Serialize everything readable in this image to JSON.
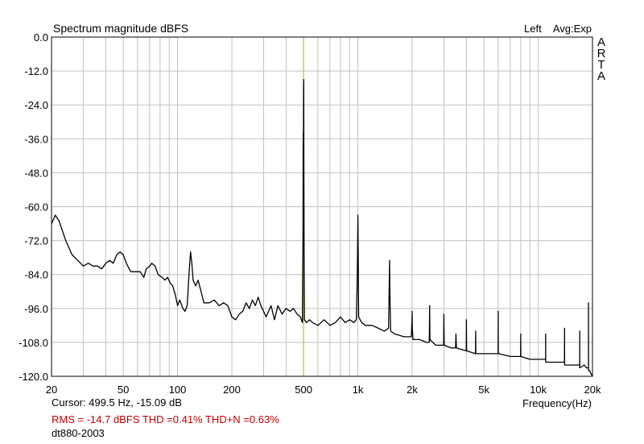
{
  "chart_data": {
    "type": "line",
    "title": "Spectrum magnitude dBFS",
    "channel_label": "Left",
    "averaging_label": "Avg:Exp",
    "watermark": [
      "A",
      "R",
      "T",
      "A"
    ],
    "xlabel": "Frequency(Hz)",
    "ylabel": "",
    "xscale": "log",
    "xlim": [
      20,
      20000
    ],
    "ylim": [
      -120,
      0
    ],
    "grid": true,
    "x_ticks": [
      {
        "value": 20,
        "label": "20"
      },
      {
        "value": 50,
        "label": "50"
      },
      {
        "value": 100,
        "label": "100"
      },
      {
        "value": 200,
        "label": "200"
      },
      {
        "value": 500,
        "label": "500"
      },
      {
        "value": 1000,
        "label": "1k"
      },
      {
        "value": 2000,
        "label": "2k"
      },
      {
        "value": 5000,
        "label": "5k"
      },
      {
        "value": 10000,
        "label": "10k"
      },
      {
        "value": 20000,
        "label": "20k"
      }
    ],
    "y_ticks": [
      {
        "value": 0,
        "label": "0.0"
      },
      {
        "value": -12,
        "label": "-12.0"
      },
      {
        "value": -24,
        "label": "-24.0"
      },
      {
        "value": -36,
        "label": "-36.0"
      },
      {
        "value": -48,
        "label": "-48.0"
      },
      {
        "value": -60,
        "label": "-60.0"
      },
      {
        "value": -72,
        "label": "-72.0"
      },
      {
        "value": -84,
        "label": "-84.0"
      },
      {
        "value": -96,
        "label": "-96.0"
      },
      {
        "value": -108,
        "label": "-108.0"
      },
      {
        "value": -120,
        "label": "-120.0"
      }
    ],
    "cursor_frequency_hz": 499.5,
    "series": [
      {
        "color": "#000000",
        "points": [
          [
            20,
            -66
          ],
          [
            21,
            -63
          ],
          [
            22,
            -65
          ],
          [
            24,
            -72
          ],
          [
            26,
            -77
          ],
          [
            28,
            -79
          ],
          [
            30,
            -81
          ],
          [
            32,
            -80
          ],
          [
            34,
            -81
          ],
          [
            36,
            -81
          ],
          [
            38,
            -82
          ],
          [
            40,
            -80
          ],
          [
            42,
            -79
          ],
          [
            44,
            -80
          ],
          [
            46,
            -77
          ],
          [
            48,
            -76
          ],
          [
            50,
            -77
          ],
          [
            52,
            -80
          ],
          [
            55,
            -83
          ],
          [
            58,
            -83
          ],
          [
            62,
            -83
          ],
          [
            65,
            -85
          ],
          [
            67,
            -82
          ],
          [
            70,
            -81
          ],
          [
            72,
            -80
          ],
          [
            75,
            -81
          ],
          [
            78,
            -84
          ],
          [
            82,
            -85
          ],
          [
            85,
            -86
          ],
          [
            88,
            -85
          ],
          [
            91,
            -87
          ],
          [
            94,
            -88
          ],
          [
            97,
            -91
          ],
          [
            100,
            -95
          ],
          [
            103,
            -93
          ],
          [
            107,
            -96
          ],
          [
            110,
            -97
          ],
          [
            113,
            -95
          ],
          [
            116,
            -83
          ],
          [
            118,
            -76
          ],
          [
            120,
            -80
          ],
          [
            122,
            -86
          ],
          [
            126,
            -88
          ],
          [
            130,
            -86
          ],
          [
            135,
            -90
          ],
          [
            140,
            -94
          ],
          [
            145,
            -94
          ],
          [
            150,
            -94
          ],
          [
            160,
            -93
          ],
          [
            170,
            -95
          ],
          [
            180,
            -94
          ],
          [
            190,
            -95
          ],
          [
            200,
            -99
          ],
          [
            210,
            -100
          ],
          [
            220,
            -98
          ],
          [
            230,
            -97
          ],
          [
            240,
            -94
          ],
          [
            250,
            -96
          ],
          [
            260,
            -93
          ],
          [
            270,
            -95
          ],
          [
            280,
            -92
          ],
          [
            290,
            -95
          ],
          [
            300,
            -97
          ],
          [
            310,
            -99
          ],
          [
            330,
            -95
          ],
          [
            345,
            -100
          ],
          [
            360,
            -95
          ],
          [
            380,
            -98
          ],
          [
            400,
            -96
          ],
          [
            420,
            -97
          ],
          [
            440,
            -96
          ],
          [
            460,
            -98
          ],
          [
            480,
            -99
          ],
          [
            492,
            -101
          ],
          [
            496,
            -70
          ],
          [
            497,
            -37
          ],
          [
            498,
            -34
          ],
          [
            499,
            -48
          ],
          [
            500,
            -18
          ],
          [
            501,
            -15
          ],
          [
            502,
            -46
          ],
          [
            503,
            -68
          ],
          [
            505,
            -100
          ],
          [
            520,
            -101
          ],
          [
            540,
            -100
          ],
          [
            560,
            -101
          ],
          [
            600,
            -102
          ],
          [
            650,
            -100
          ],
          [
            700,
            -102
          ],
          [
            750,
            -101
          ],
          [
            800,
            -99
          ],
          [
            850,
            -101
          ],
          [
            900,
            -100
          ],
          [
            950,
            -101
          ],
          [
            980,
            -100
          ],
          [
            990,
            -88
          ],
          [
            995,
            -77
          ],
          [
            1000,
            -63
          ],
          [
            1005,
            -80
          ],
          [
            1010,
            -99
          ],
          [
            1050,
            -101
          ],
          [
            1100,
            -102
          ],
          [
            1200,
            -102
          ],
          [
            1300,
            -103
          ],
          [
            1400,
            -104
          ],
          [
            1480,
            -103
          ],
          [
            1495,
            -84
          ],
          [
            1500,
            -79
          ],
          [
            1505,
            -90
          ],
          [
            1520,
            -104
          ],
          [
            1600,
            -105
          ],
          [
            1800,
            -106
          ],
          [
            1980,
            -106
          ],
          [
            1995,
            -100
          ],
          [
            2000,
            -97
          ],
          [
            2005,
            -103
          ],
          [
            2020,
            -107
          ],
          [
            2200,
            -107
          ],
          [
            2400,
            -108
          ],
          [
            2490,
            -108
          ],
          [
            2500,
            -95
          ],
          [
            2510,
            -107
          ],
          [
            2700,
            -109
          ],
          [
            2990,
            -109
          ],
          [
            3000,
            -98
          ],
          [
            3010,
            -109
          ],
          [
            3300,
            -110
          ],
          [
            3480,
            -110
          ],
          [
            3500,
            -105
          ],
          [
            3520,
            -110
          ],
          [
            3990,
            -111
          ],
          [
            4000,
            -100
          ],
          [
            4010,
            -111
          ],
          [
            4490,
            -112
          ],
          [
            4500,
            -104
          ],
          [
            4510,
            -112
          ],
          [
            5000,
            -112
          ],
          [
            5990,
            -112
          ],
          [
            6000,
            -97
          ],
          [
            6010,
            -112
          ],
          [
            7000,
            -113
          ],
          [
            7990,
            -113
          ],
          [
            8000,
            -105
          ],
          [
            8010,
            -113
          ],
          [
            9000,
            -114
          ],
          [
            10000,
            -114
          ],
          [
            10990,
            -114
          ],
          [
            11000,
            -105
          ],
          [
            11010,
            -115
          ],
          [
            12500,
            -115
          ],
          [
            13990,
            -115
          ],
          [
            14000,
            -103
          ],
          [
            14010,
            -116
          ],
          [
            15500,
            -116
          ],
          [
            16990,
            -116
          ],
          [
            17000,
            -104
          ],
          [
            17010,
            -117
          ],
          [
            18000,
            -116
          ],
          [
            18500,
            -117
          ],
          [
            18990,
            -117
          ],
          [
            19000,
            -94
          ],
          [
            19010,
            -118
          ],
          [
            19300,
            -118
          ],
          [
            19600,
            -119
          ],
          [
            20000,
            -120
          ]
        ]
      }
    ]
  },
  "footer": {
    "cursor": "Cursor:   499.5 Hz, -15.09 dB",
    "stats": "RMS =  -14.7 dBFS   THD =0.41%   THD+N =0.63%",
    "device": "dt880-2003"
  },
  "colors": {
    "grid": "#c0c0c0",
    "trace": "#000000",
    "cursor": "#d4b700",
    "stats_text": "#c00000"
  }
}
